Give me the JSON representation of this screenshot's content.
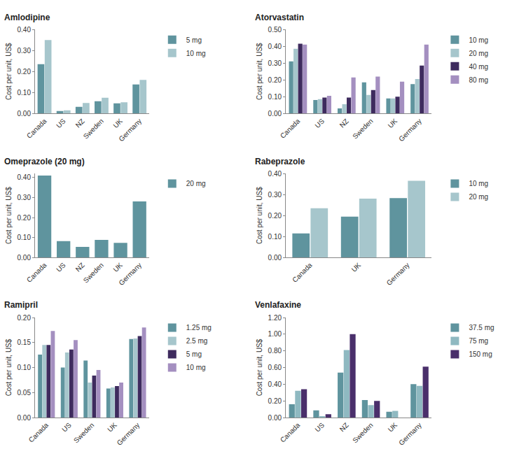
{
  "chart_data": [
    {
      "type": "bar",
      "title": "Amlodipine",
      "y_label": "Cost per unit, US$",
      "categories": [
        "Canada",
        "US",
        "NZ",
        "Sweden",
        "UK",
        "Germany"
      ],
      "series": [
        {
          "name": "5 mg",
          "color": "#5f949e",
          "values": [
            0.235,
            0.012,
            0.032,
            0.058,
            0.048,
            0.138
          ]
        },
        {
          "name": "10 mg",
          "color": "#a6c6cc",
          "values": [
            0.35,
            0.015,
            0.05,
            0.075,
            0.053,
            0.16
          ]
        }
      ],
      "ylim": [
        0,
        0.4
      ],
      "yticks": [
        {
          "value": 0,
          "label": "0.00"
        },
        {
          "value": 0.1,
          "label": "0.10"
        },
        {
          "value": 0.2,
          "label": "0.20"
        },
        {
          "value": 0.3,
          "label": "0.30"
        },
        {
          "value": 0.4,
          "label": "0.40"
        }
      ],
      "grid": false,
      "legend": "right"
    },
    {
      "type": "bar",
      "title": "Atorvastatin",
      "y_label": "Cost per unit, US$",
      "categories": [
        "Canada",
        "US",
        "NZ",
        "Sweden",
        "UK",
        "Germany"
      ],
      "series": [
        {
          "name": "10 mg",
          "color": "#5f949e",
          "values": [
            0.31,
            0.08,
            0.03,
            0.185,
            0.09,
            0.175
          ]
        },
        {
          "name": "20 mg",
          "color": "#a6c6cc",
          "values": [
            0.385,
            0.085,
            0.055,
            0.11,
            0.09,
            0.205
          ]
        },
        {
          "name": "40 mg",
          "color": "#3e2b5e",
          "values": [
            0.415,
            0.095,
            0.095,
            0.14,
            0.1,
            0.285
          ]
        },
        {
          "name": "80 mg",
          "color": "#a48fc0",
          "values": [
            0.41,
            0.105,
            0.215,
            0.22,
            0.19,
            0.41
          ]
        }
      ],
      "ylim": [
        0,
        0.5
      ],
      "yticks": [
        {
          "value": 0,
          "label": "0.00"
        },
        {
          "value": 0.1,
          "label": "0.10"
        },
        {
          "value": 0.2,
          "label": "0.20"
        },
        {
          "value": 0.3,
          "label": "0.30"
        },
        {
          "value": 0.4,
          "label": "0.40"
        },
        {
          "value": 0.5,
          "label": "0.50"
        }
      ],
      "grid": false,
      "legend": "right"
    },
    {
      "type": "bar",
      "title": "Omeprazole (20 mg)",
      "y_label": "Cost per unit, US$",
      "categories": [
        "Canada",
        "US",
        "NZ",
        "Sweden",
        "UK",
        "Germany"
      ],
      "series": [
        {
          "name": "20 mg",
          "color": "#5f949e",
          "values": [
            0.41,
            0.082,
            0.053,
            0.088,
            0.073,
            0.28
          ]
        }
      ],
      "ylim": [
        0,
        0.42
      ],
      "yticks": [
        {
          "value": 0,
          "label": "0.00"
        },
        {
          "value": 0.1,
          "label": "0.10"
        },
        {
          "value": 0.2,
          "label": "0.20"
        },
        {
          "value": 0.3,
          "label": "0.30"
        },
        {
          "value": 0.4,
          "label": "0.40"
        }
      ],
      "grid": false,
      "legend": "right"
    },
    {
      "type": "bar",
      "title": "Rabeprazole",
      "y_label": "Cost per unit, US$",
      "categories": [
        "Canada",
        "UK",
        "Germany"
      ],
      "series": [
        {
          "name": "10 mg",
          "color": "#5f949e",
          "values": [
            0.115,
            0.195,
            0.283
          ]
        },
        {
          "name": "20 mg",
          "color": "#a6c6cc",
          "values": [
            0.235,
            0.28,
            0.365
          ]
        }
      ],
      "ylim": [
        0,
        0.4
      ],
      "yticks": [
        {
          "value": 0,
          "label": "0.00"
        },
        {
          "value": 0.1,
          "label": "0.10"
        },
        {
          "value": 0.2,
          "label": "0.20"
        },
        {
          "value": 0.3,
          "label": "0.30"
        },
        {
          "value": 0.4,
          "label": "0.40"
        }
      ],
      "grid": false,
      "legend": "right"
    },
    {
      "type": "bar",
      "title": "Ramipril",
      "y_label": "Cost per unit, US$",
      "categories": [
        "Canada",
        "US",
        "Sweden",
        "UK",
        "Germany"
      ],
      "series": [
        {
          "name": "1.25 mg",
          "color": "#5f949e",
          "values": [
            0.126,
            0.1,
            0.114,
            0.058,
            0.157
          ]
        },
        {
          "name": "2.5 mg",
          "color": "#a6c6cc",
          "values": [
            0.145,
            0.13,
            0.07,
            0.06,
            0.158
          ]
        },
        {
          "name": "5 mg",
          "color": "#3e2b5e",
          "values": [
            0.145,
            0.136,
            0.084,
            0.063,
            0.163
          ]
        },
        {
          "name": "10 mg",
          "color": "#a48fc0",
          "values": [
            0.173,
            0.155,
            0.095,
            0.07,
            0.18
          ]
        }
      ],
      "ylim": [
        0,
        0.2
      ],
      "yticks": [
        {
          "value": 0,
          "label": "0.00"
        },
        {
          "value": 0.05,
          "label": "0.05"
        },
        {
          "value": 0.1,
          "label": "0.10"
        },
        {
          "value": 0.15,
          "label": "0.15"
        },
        {
          "value": 0.2,
          "label": "0.20"
        }
      ],
      "grid": false,
      "legend": "right"
    },
    {
      "type": "bar",
      "title": "Venlafaxine",
      "y_label": "Cost per unit, US$",
      "categories": [
        "Canada",
        "US",
        "NZ",
        "Sweden",
        "UK",
        "Germany"
      ],
      "series": [
        {
          "name": "37.5 mg",
          "color": "#5f949e",
          "values": [
            0.16,
            0.085,
            0.54,
            0.21,
            0.07,
            0.4
          ]
        },
        {
          "name": "75 mg",
          "color": "#8fb9c1",
          "values": [
            0.32,
            0.01,
            0.81,
            0.15,
            0.08,
            0.38
          ]
        },
        {
          "name": "150 mg",
          "color": "#4a2f6b",
          "values": [
            0.34,
            0.04,
            1.0,
            0.2,
            null,
            0.61
          ]
        }
      ],
      "ylim": [
        0,
        1.2
      ],
      "yticks": [
        {
          "value": 0,
          "label": "0.00"
        },
        {
          "value": 0.2,
          "label": "0.20"
        },
        {
          "value": 0.4,
          "label": "0.40"
        },
        {
          "value": 0.6,
          "label": "0.60"
        },
        {
          "value": 0.8,
          "label": "0.80"
        },
        {
          "value": 1.0,
          "label": "1.00"
        },
        {
          "value": 1.2,
          "label": "1.20"
        }
      ],
      "grid": false,
      "legend": "right"
    }
  ]
}
